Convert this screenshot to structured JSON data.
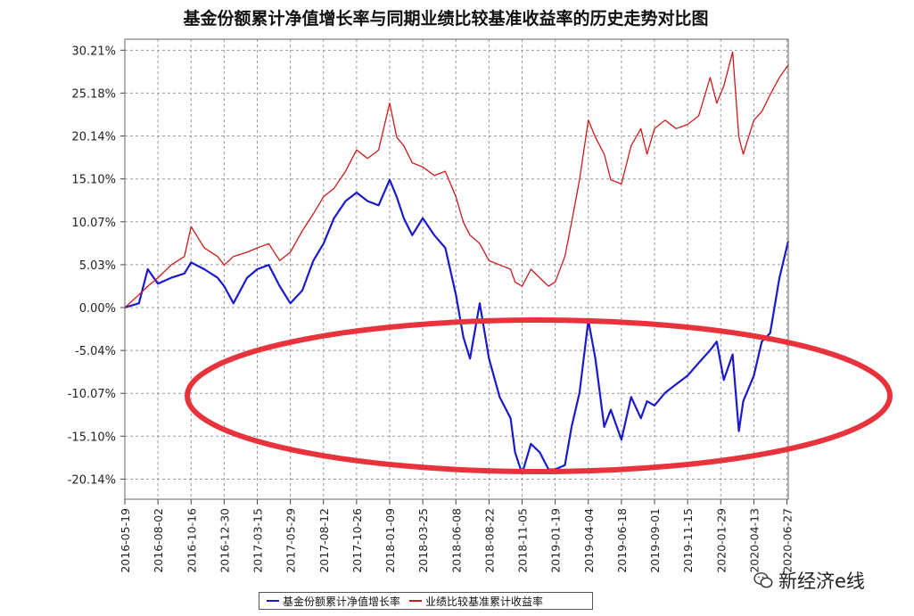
{
  "chart_data": {
    "type": "line",
    "title": "基金份额累计净值增长率与同期业绩比较基准收益率的历史走势对比图",
    "ylim": [
      -22.5,
      31.5
    ],
    "yticks": [
      "30.21%",
      "25.18%",
      "20.14%",
      "15.10%",
      "10.07%",
      "5.03%",
      "0.00%",
      "-5.04%",
      "-10.07%",
      "-15.10%",
      "-20.14%"
    ],
    "ytick_values": [
      30.21,
      25.18,
      20.14,
      15.1,
      10.07,
      5.03,
      0.0,
      -5.04,
      -10.07,
      -15.1,
      -20.14
    ],
    "xlim": [
      "2016-05-19",
      "2020-06-30"
    ],
    "xticks": [
      "2016-05-19",
      "2016-08-02",
      "2016-10-16",
      "2016-12-30",
      "2017-03-15",
      "2017-05-29",
      "2017-08-12",
      "2017-10-26",
      "2018-01-09",
      "2018-03-25",
      "2018-06-08",
      "2018-08-22",
      "2018-11-05",
      "2019-01-19",
      "2019-04-04",
      "2019-06-18",
      "2019-09-01",
      "2019-11-15",
      "2020-01-29",
      "2020-04-13",
      "2020-06-27"
    ],
    "grid": true,
    "legend_position": "bottom",
    "series": [
      {
        "name": "基金份额累计净值增长率",
        "color": "#1a1acc",
        "x": [
          "2016-05-19",
          "2016-06-20",
          "2016-07-10",
          "2016-08-02",
          "2016-09-01",
          "2016-10-01",
          "2016-10-16",
          "2016-11-15",
          "2016-12-15",
          "2016-12-30",
          "2017-01-20",
          "2017-02-20",
          "2017-03-15",
          "2017-04-10",
          "2017-05-05",
          "2017-05-29",
          "2017-06-25",
          "2017-07-20",
          "2017-08-12",
          "2017-09-05",
          "2017-10-01",
          "2017-10-26",
          "2017-11-20",
          "2017-12-15",
          "2018-01-09",
          "2018-01-25",
          "2018-02-10",
          "2018-03-01",
          "2018-03-25",
          "2018-04-20",
          "2018-05-15",
          "2018-06-08",
          "2018-06-25",
          "2018-07-10",
          "2018-08-01",
          "2018-08-22",
          "2018-09-15",
          "2018-10-10",
          "2018-10-20",
          "2018-11-05",
          "2018-11-25",
          "2018-12-15",
          "2019-01-04",
          "2019-01-19",
          "2019-02-10",
          "2019-02-25",
          "2019-03-15",
          "2019-04-04",
          "2019-04-20",
          "2019-05-10",
          "2019-05-25",
          "2019-06-18",
          "2019-07-10",
          "2019-08-01",
          "2019-08-15",
          "2019-09-01",
          "2019-09-25",
          "2019-10-20",
          "2019-11-15",
          "2019-12-10",
          "2020-01-05",
          "2020-01-20",
          "2020-02-05",
          "2020-02-25",
          "2020-03-10",
          "2020-03-20",
          "2020-04-13",
          "2020-05-01",
          "2020-05-20",
          "2020-06-10",
          "2020-06-30"
        ],
        "values": [
          0.0,
          0.5,
          4.5,
          2.8,
          3.5,
          4.0,
          5.3,
          4.5,
          3.5,
          2.5,
          0.5,
          3.5,
          4.5,
          5.0,
          2.5,
          0.5,
          2.0,
          5.5,
          7.5,
          10.5,
          12.5,
          13.5,
          12.5,
          12.0,
          15.0,
          13.0,
          10.5,
          8.5,
          10.5,
          8.5,
          7.0,
          1.5,
          -3.5,
          -6.0,
          0.5,
          -6.0,
          -10.5,
          -13.0,
          -17.0,
          -19.5,
          -16.0,
          -17.0,
          -19.0,
          -19.0,
          -18.5,
          -14.0,
          -10.0,
          -1.5,
          -6.0,
          -14.0,
          -12.0,
          -15.5,
          -10.5,
          -13.0,
          -11.0,
          -11.5,
          -10.0,
          -9.0,
          -8.0,
          -6.5,
          -5.0,
          -4.0,
          -8.5,
          -5.5,
          -14.5,
          -11.0,
          -8.0,
          -4.0,
          -3.0,
          3.5,
          7.8
        ]
      },
      {
        "name": "业绩比较基准累计收益率",
        "color": "#cc1a1a",
        "x": [
          "2016-05-19",
          "2016-06-20",
          "2016-07-10",
          "2016-08-02",
          "2016-09-01",
          "2016-10-01",
          "2016-10-16",
          "2016-11-15",
          "2016-12-15",
          "2016-12-30",
          "2017-01-20",
          "2017-02-20",
          "2017-03-15",
          "2017-04-10",
          "2017-05-05",
          "2017-05-29",
          "2017-06-25",
          "2017-07-20",
          "2017-08-12",
          "2017-09-05",
          "2017-10-01",
          "2017-10-26",
          "2017-11-20",
          "2017-12-15",
          "2018-01-09",
          "2018-01-25",
          "2018-02-10",
          "2018-03-01",
          "2018-03-25",
          "2018-04-20",
          "2018-05-15",
          "2018-06-08",
          "2018-06-25",
          "2018-07-10",
          "2018-08-01",
          "2018-08-22",
          "2018-09-15",
          "2018-10-10",
          "2018-10-20",
          "2018-11-05",
          "2018-11-25",
          "2018-12-15",
          "2019-01-04",
          "2019-01-19",
          "2019-02-10",
          "2019-02-25",
          "2019-03-15",
          "2019-04-04",
          "2019-04-20",
          "2019-05-10",
          "2019-05-25",
          "2019-06-18",
          "2019-07-10",
          "2019-08-01",
          "2019-08-15",
          "2019-09-01",
          "2019-09-25",
          "2019-10-20",
          "2019-11-15",
          "2019-12-10",
          "2020-01-05",
          "2020-01-20",
          "2020-02-05",
          "2020-02-25",
          "2020-03-10",
          "2020-03-20",
          "2020-04-13",
          "2020-05-01",
          "2020-05-20",
          "2020-06-10",
          "2020-06-30"
        ],
        "values": [
          0.0,
          1.5,
          2.5,
          3.5,
          5.0,
          6.0,
          9.5,
          7.0,
          6.0,
          5.0,
          6.0,
          6.5,
          7.0,
          7.5,
          5.5,
          6.5,
          9.0,
          11.0,
          13.0,
          14.0,
          16.0,
          18.5,
          17.5,
          18.5,
          24.0,
          20.0,
          19.0,
          17.0,
          16.5,
          15.5,
          16.0,
          13.0,
          10.0,
          8.5,
          7.5,
          5.5,
          5.0,
          4.5,
          3.0,
          2.5,
          4.5,
          3.5,
          2.5,
          3.0,
          6.0,
          10.0,
          15.0,
          22.0,
          20.0,
          18.0,
          15.0,
          14.5,
          19.0,
          21.0,
          18.0,
          21.0,
          22.0,
          21.0,
          21.5,
          22.5,
          27.0,
          24.0,
          26.0,
          30.0,
          20.0,
          18.0,
          22.0,
          23.0,
          25.0,
          27.0,
          28.5
        ]
      }
    ]
  },
  "watermark": {
    "text": "新经济e线",
    "icon": "wechat-icon"
  }
}
